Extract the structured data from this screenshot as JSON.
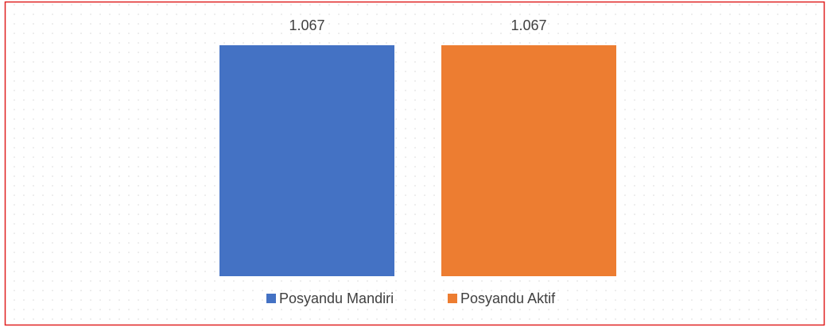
{
  "chart_data": {
    "type": "bar",
    "legend": "bottom",
    "series": [
      {
        "name": "Posyandu Mandiri",
        "color": "#4472c4",
        "values": [
          1067
        ],
        "value_labels": [
          "1.067"
        ]
      },
      {
        "name": "Posyandu Aktif",
        "color": "#ed7d31",
        "values": [
          1067
        ],
        "value_labels": [
          "1.067"
        ]
      }
    ]
  }
}
